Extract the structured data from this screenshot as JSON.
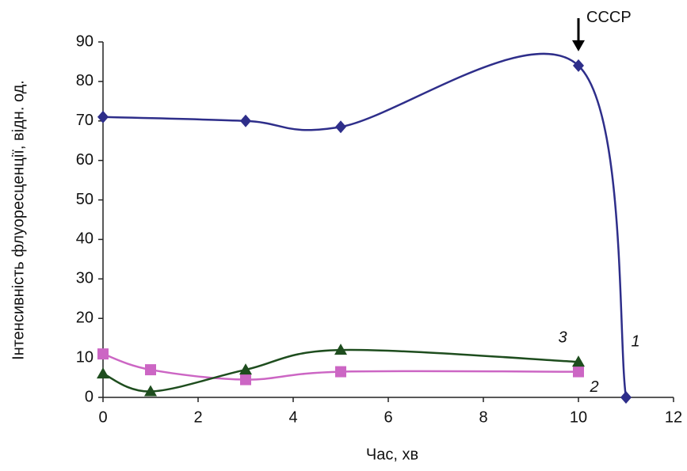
{
  "chart_data": {
    "type": "line",
    "x_label": "Час, хв",
    "y_label": "Інтенсивність флуоресценції, відн. од.",
    "annotation": "CCCP",
    "xlim": [
      0,
      12
    ],
    "xticks": [
      0,
      2,
      4,
      6,
      8,
      10,
      12
    ],
    "ylim": [
      0,
      90
    ],
    "yticks": [
      0,
      10,
      20,
      30,
      40,
      50,
      60,
      70,
      80,
      90
    ],
    "series": [
      {
        "name": "1",
        "color": "#2e2e8a",
        "marker": "diamond",
        "x": [
          0,
          3,
          5,
          10,
          11
        ],
        "values": [
          71,
          70,
          68.5,
          84,
          0
        ]
      },
      {
        "name": "2",
        "color": "#cc66c4",
        "marker": "square",
        "x": [
          0,
          1,
          3,
          5,
          10
        ],
        "values": [
          11,
          7,
          4.5,
          6.5,
          6.5
        ]
      },
      {
        "name": "3",
        "color": "#1e4d1e",
        "marker": "triangle",
        "x": [
          0,
          1,
          3,
          5,
          10
        ],
        "values": [
          6,
          1.5,
          7,
          12,
          9
        ]
      }
    ]
  }
}
